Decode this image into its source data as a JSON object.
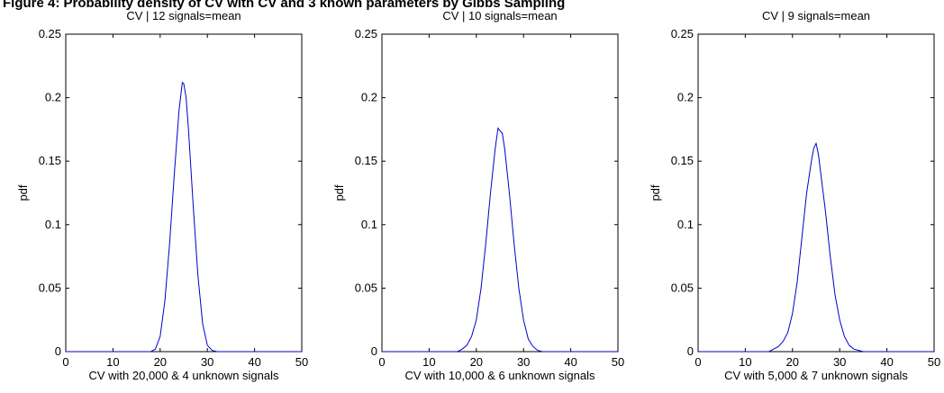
{
  "figure_title": "Figure 4: Probability density of CV with CV and 3 known parameters by Gibbs Sampling",
  "chart_data": [
    {
      "type": "line",
      "title": "CV | 12 signals=mean",
      "xlabel": "CV with 20,000 & 4 unknown signals",
      "ylabel": "pdf",
      "xlim": [
        0,
        50
      ],
      "ylim": [
        0,
        0.25
      ],
      "xticks": [
        0,
        10,
        20,
        30,
        40,
        50
      ],
      "yticks": [
        0,
        0.05,
        0.1,
        0.15,
        0.2,
        0.25
      ],
      "grid": false,
      "series": [
        {
          "color": "#0000cc",
          "x": [
            0,
            18,
            19,
            20,
            21,
            22,
            23,
            24,
            24.7,
            25,
            25.5,
            26,
            27,
            28,
            29,
            30,
            31,
            32,
            50
          ],
          "y": [
            0,
            0,
            0.002,
            0.012,
            0.04,
            0.085,
            0.14,
            0.19,
            0.212,
            0.211,
            0.2,
            0.175,
            0.115,
            0.06,
            0.022,
            0.005,
            0.001,
            0,
            0
          ]
        }
      ]
    },
    {
      "type": "line",
      "title": "CV | 10 signals=mean",
      "xlabel": "CV with 10,000 & 6 unknown signals",
      "ylabel": "pdf",
      "xlim": [
        0,
        50
      ],
      "ylim": [
        0,
        0.25
      ],
      "xticks": [
        0,
        10,
        20,
        30,
        40,
        50
      ],
      "yticks": [
        0,
        0.05,
        0.1,
        0.15,
        0.2,
        0.25
      ],
      "grid": false,
      "series": [
        {
          "color": "#0000cc",
          "x": [
            0,
            16,
            17,
            18,
            19,
            20,
            21,
            22,
            23,
            24,
            24.6,
            25,
            25.5,
            26,
            27,
            28,
            29,
            30,
            31,
            32,
            33,
            34,
            50
          ],
          "y": [
            0,
            0,
            0.002,
            0.005,
            0.012,
            0.025,
            0.05,
            0.085,
            0.125,
            0.16,
            0.176,
            0.174,
            0.172,
            0.16,
            0.125,
            0.085,
            0.05,
            0.025,
            0.01,
            0.004,
            0.001,
            0,
            0
          ]
        }
      ]
    },
    {
      "type": "line",
      "title": "CV | 9 signals=mean",
      "xlabel": "CV with 5,000 & 7 unknown signals",
      "ylabel": "pdf",
      "xlim": [
        0,
        50
      ],
      "ylim": [
        0,
        0.25
      ],
      "xticks": [
        0,
        10,
        20,
        30,
        40,
        50
      ],
      "yticks": [
        0,
        0.05,
        0.1,
        0.15,
        0.2,
        0.25
      ],
      "grid": false,
      "series": [
        {
          "color": "#0000cc",
          "x": [
            0,
            15,
            16,
            17,
            18,
            19,
            20,
            21,
            22,
            23,
            24,
            24.5,
            25,
            25.5,
            26,
            27,
            28,
            29,
            30,
            31,
            32,
            33,
            34,
            35,
            50
          ],
          "y": [
            0,
            0,
            0.002,
            0.004,
            0.008,
            0.015,
            0.03,
            0.055,
            0.09,
            0.125,
            0.15,
            0.16,
            0.164,
            0.155,
            0.14,
            0.11,
            0.075,
            0.045,
            0.025,
            0.012,
            0.005,
            0.002,
            0.001,
            0,
            0
          ]
        }
      ]
    }
  ]
}
